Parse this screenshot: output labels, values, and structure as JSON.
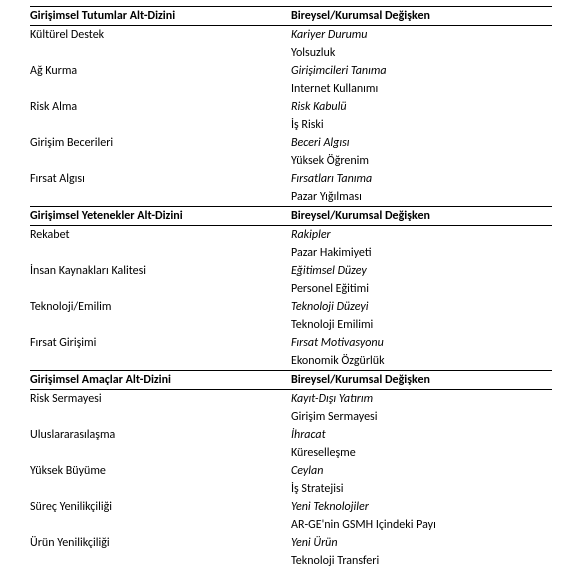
{
  "sections": [
    {
      "header_left": "Girişimsel Tutumlar Alt-Dizini",
      "header_right": "Bireysel/Kurumsal Değişken",
      "rows": [
        {
          "left": "Kültürel Destek",
          "right": "Kariyer Durumu",
          "right_italic": true
        },
        {
          "left": "",
          "right": "Yolsuzluk",
          "right_italic": false
        },
        {
          "left": "Ağ Kurma",
          "right": "Girişimcileri Tanıma",
          "right_italic": true
        },
        {
          "left": "",
          "right": "Internet Kullanımı",
          "right_italic": false
        },
        {
          "left": "Risk Alma",
          "right": "Risk Kabulü",
          "right_italic": true
        },
        {
          "left": "",
          "right": "İş Riski",
          "right_italic": false
        },
        {
          "left": "Girişim Becerileri",
          "right": "Beceri Algısı",
          "right_italic": true
        },
        {
          "left": "",
          "right": "Yüksek Öğrenim",
          "right_italic": false
        },
        {
          "left": "Fırsat Algısı",
          "right": "Fırsatları Tanıma",
          "right_italic": true
        },
        {
          "left": "",
          "right": "Pazar Yığılması",
          "right_italic": false
        }
      ]
    },
    {
      "header_left": "Girişimsel Yetenekler Alt-Dizini",
      "header_right": "Bireysel/Kurumsal Değişken",
      "rows": [
        {
          "left": "Rekabet",
          "right": "Rakipler",
          "right_italic": true
        },
        {
          "left": "",
          "right": "Pazar Hakimiyeti",
          "right_italic": false
        },
        {
          "left": "İnsan Kaynakları Kalitesi",
          "right": "Eğitimsel Düzey",
          "right_italic": true
        },
        {
          "left": "",
          "right": "Personel Eğitimi",
          "right_italic": false
        },
        {
          "left": "Teknoloji/Emilim",
          "right": "Teknoloji Düzeyi",
          "right_italic": true
        },
        {
          "left": "",
          "right": "Teknoloji Emilimi",
          "right_italic": false
        },
        {
          "left": "Fırsat Girişimi",
          "right": "Fırsat Motivasyonu",
          "right_italic": true
        },
        {
          "left": "",
          "right": "Ekonomik Özgürlük",
          "right_italic": false
        }
      ]
    },
    {
      "header_left": "Girişimsel Amaçlar Alt-Dizini",
      "header_right": " Bireysel/Kurumsal Değişken",
      "rows": [
        {
          "left": "Risk Sermayesi",
          "right": "Kayıt-Dışı Yatırım",
          "right_italic": true
        },
        {
          "left": "",
          "right": "Girişim Sermayesi",
          "right_italic": false
        },
        {
          "left": "Uluslararasılaşma",
          "right": "İhracat",
          "right_italic": true
        },
        {
          "left": "",
          "right": "Küreselleşme",
          "right_italic": false
        },
        {
          "left": "Yüksek Büyüme",
          "right": "Ceylan",
          "right_italic": true
        },
        {
          "left": "",
          "right": "İş Stratejisi",
          "right_italic": false
        },
        {
          "left": "Süreç Yenilikçiliği",
          "right": "Yeni Teknolojiler",
          "right_italic": true
        },
        {
          "left": "",
          "right": "AR-GE'nin GSMH Içindeki Payı",
          "right_italic": false
        },
        {
          "left": "Ürün Yenilikçiliği",
          "right": "Yeni Ürün",
          "right_italic": true
        },
        {
          "left": "",
          "right": "Teknoloji Transferi",
          "right_italic": false
        }
      ]
    }
  ],
  "style": {
    "font_family": "Calibri, Arial, sans-serif",
    "font_size_pt": 12,
    "text_color": "#000000",
    "background_color": "#ffffff",
    "border_color": "#000000",
    "col1_width_pct": 50,
    "col2_width_pct": 50
  }
}
